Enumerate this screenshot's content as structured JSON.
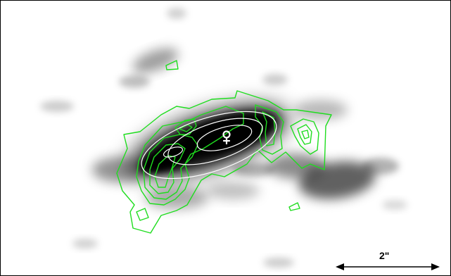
{
  "image": {
    "background_color": "#ffffff",
    "emission_color": "#000000",
    "contour_color": "#1fdd1f",
    "ellipse_color": "#ffffff"
  },
  "scale_bar": {
    "label": "2\""
  },
  "marker": {
    "symbol": "♀",
    "icon": "venus-symbol-icon"
  }
}
